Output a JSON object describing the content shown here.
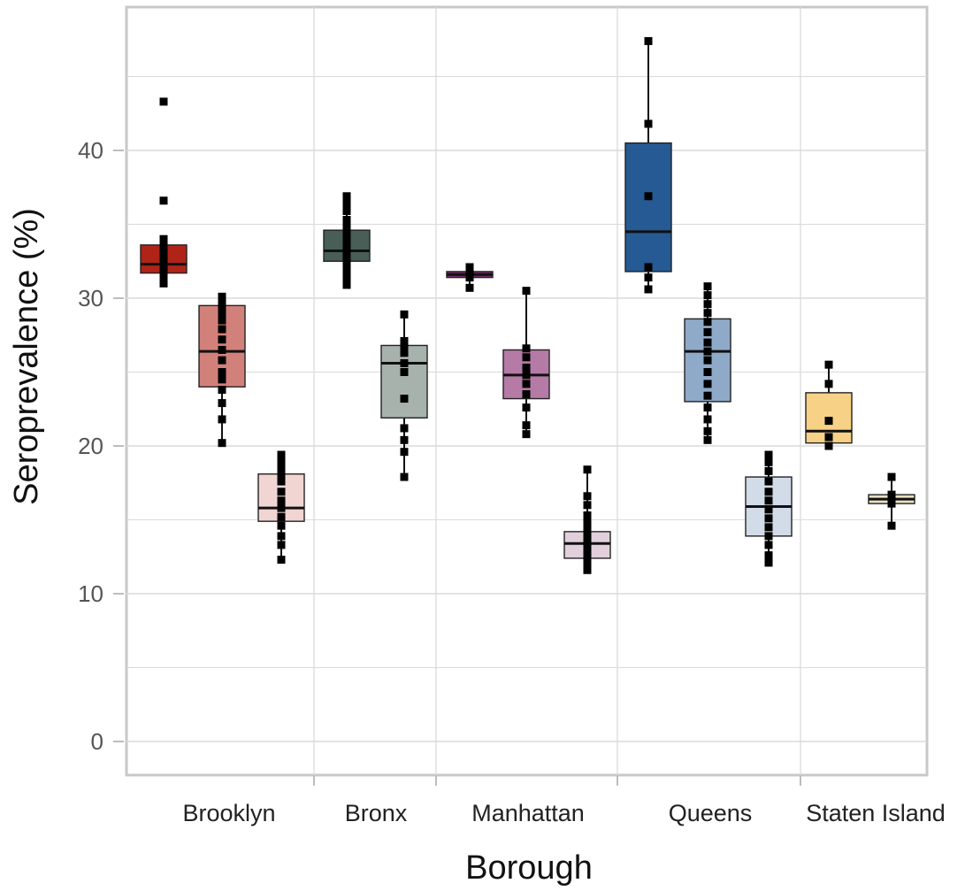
{
  "chart_data": {
    "type": "boxplot",
    "xlabel": "Borough",
    "ylabel": "Seroprevalence (%)",
    "ylim": [
      0,
      50
    ],
    "yticks": [
      "0",
      "10",
      "20",
      "30",
      "40"
    ],
    "grid": true,
    "legend": "none",
    "categories": [
      "Brooklyn",
      "Bronx",
      "Manhattan",
      "Queens",
      "Staten Island"
    ],
    "groups": [
      {
        "category": "Brooklyn",
        "boxes": [
          {
            "fill": "#b02418",
            "opacity": 1.0,
            "q1": 31.7,
            "median": 32.3,
            "q3": 33.6,
            "whisker_low": 31.0,
            "whisker_high": 33.6,
            "points": [
              43.3,
              36.6,
              34.0,
              33.5,
              33.2,
              32.9,
              32.6,
              32.4,
              32.2,
              32.0,
              31.8,
              31.5,
              31.2,
              31.0
            ]
          },
          {
            "fill": "#d2817a",
            "opacity": 1.0,
            "q1": 24.0,
            "median": 26.4,
            "q3": 29.5,
            "whisker_low": 20.2,
            "whisker_high": 30.1,
            "points": [
              30.1,
              29.8,
              29.4,
              29.0,
              28.5,
              27.9,
              27.2,
              26.5,
              25.8,
              25.0,
              24.5,
              23.8,
              22.9,
              21.8,
              20.2
            ]
          },
          {
            "fill": "#f0d5d3",
            "opacity": 1.0,
            "q1": 14.9,
            "median": 15.8,
            "q3": 18.1,
            "whisker_low": 12.3,
            "whisker_high": 19.4,
            "points": [
              19.4,
              19.0,
              18.6,
              18.1,
              17.6,
              16.9,
              16.3,
              15.8,
              15.2,
              14.6,
              13.9,
              13.3,
              12.3
            ]
          }
        ]
      },
      {
        "category": "Bronx",
        "boxes": [
          {
            "fill": "#485e56",
            "opacity": 1.0,
            "q1": 32.5,
            "median": 33.2,
            "q3": 34.6,
            "whisker_low": 30.9,
            "whisker_high": 36.9,
            "points": [
              36.9,
              36.4,
              35.9,
              35.3,
              34.9,
              34.4,
              34.0,
              33.6,
              33.2,
              32.8,
              32.3,
              31.9,
              31.4,
              30.9
            ]
          },
          {
            "fill": "#a7b2ad",
            "opacity": 1.0,
            "q1": 21.9,
            "median": 25.6,
            "q3": 26.8,
            "whisker_low": 17.9,
            "whisker_high": 28.9,
            "points": [
              28.9,
              27.1,
              26.7,
              26.3,
              25.6,
              25.0,
              23.2,
              21.2,
              20.4,
              19.6,
              17.9
            ]
          }
        ]
      },
      {
        "category": "Manhattan",
        "boxes": [
          {
            "fill": "#7a2e6c",
            "opacity": 1.0,
            "q1": 31.4,
            "median": 31.6,
            "q3": 31.8,
            "whisker_low": 30.7,
            "whisker_high": 32.1,
            "points": [
              32.1,
              31.8,
              31.6,
              31.4,
              30.7
            ]
          },
          {
            "fill": "#b57aa6",
            "opacity": 1.0,
            "q1": 23.2,
            "median": 24.8,
            "q3": 26.5,
            "whisker_low": 20.8,
            "whisker_high": 30.5,
            "points": [
              30.5,
              26.6,
              26.0,
              25.3,
              24.8,
              24.2,
              23.5,
              22.6,
              21.4,
              20.8
            ]
          },
          {
            "fill": "#e2cfdc",
            "opacity": 1.0,
            "q1": 12.4,
            "median": 13.4,
            "q3": 14.2,
            "whisker_low": 11.6,
            "whisker_high": 18.4,
            "points": [
              18.4,
              16.6,
              16.0,
              15.3,
              14.8,
              14.3,
              13.9,
              13.5,
              13.1,
              12.7,
              12.3,
              11.9,
              11.6
            ]
          }
        ]
      },
      {
        "category": "Queens",
        "boxes": [
          {
            "fill": "#265a94",
            "opacity": 1.0,
            "q1": 31.8,
            "median": 34.5,
            "q3": 40.5,
            "whisker_low": 30.6,
            "whisker_high": 47.4,
            "points": [
              47.4,
              41.8,
              36.9,
              32.1,
              31.4,
              30.6
            ]
          },
          {
            "fill": "#8fa9c9",
            "opacity": 1.0,
            "q1": 23.0,
            "median": 26.4,
            "q3": 28.6,
            "whisker_low": 20.4,
            "whisker_high": 30.8,
            "points": [
              30.8,
              30.2,
              29.6,
              29.0,
              28.4,
              27.7,
              27.0,
              26.4,
              25.8,
              25.0,
              24.2,
              23.4,
              22.6,
              21.8,
              21.0,
              20.4
            ]
          },
          {
            "fill": "#d2dce8",
            "opacity": 1.0,
            "q1": 13.9,
            "median": 15.9,
            "q3": 17.9,
            "whisker_low": 12.1,
            "whisker_high": 19.4,
            "points": [
              19.4,
              18.9,
              18.3,
              17.6,
              16.9,
              16.3,
              15.7,
              15.1,
              14.5,
              13.9,
              13.3,
              12.6,
              12.1
            ]
          }
        ]
      },
      {
        "category": "Staten Island",
        "boxes": [
          {
            "fill": "#f7d185",
            "opacity": 1.0,
            "q1": 20.2,
            "median": 21.0,
            "q3": 23.6,
            "whisker_low": 20.0,
            "whisker_high": 25.5,
            "points": [
              25.5,
              24.2,
              21.7,
              20.6,
              20.0
            ]
          },
          {
            "fill": "#e9e1c2",
            "opacity": 1.0,
            "q1": 16.1,
            "median": 16.4,
            "q3": 16.7,
            "whisker_low": 14.6,
            "whisker_high": 17.9,
            "points": [
              17.9,
              16.7,
              16.4,
              16.1,
              14.6
            ]
          }
        ]
      }
    ]
  }
}
